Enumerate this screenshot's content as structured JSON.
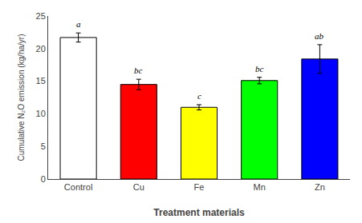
{
  "chart_data": {
    "type": "bar",
    "categories": [
      "Control",
      "Cu",
      "Fe",
      "Mn",
      "Zn"
    ],
    "values": [
      21.7,
      14.5,
      11.0,
      15.1,
      18.4
    ],
    "errors": [
      0.7,
      0.8,
      0.4,
      0.5,
      2.2
    ],
    "annotations": [
      "a",
      "bc",
      "c",
      "bc",
      "ab"
    ],
    "colors": [
      "white",
      "red",
      "yellow",
      "lime",
      "blue"
    ],
    "xlabel": "Treatment materials",
    "ylabel": "Cumulative N₂O emission (kg/ha/yr)",
    "ylim": [
      0,
      25
    ],
    "yticks": [
      0,
      5,
      10,
      15,
      20,
      25
    ],
    "grid": false
  }
}
